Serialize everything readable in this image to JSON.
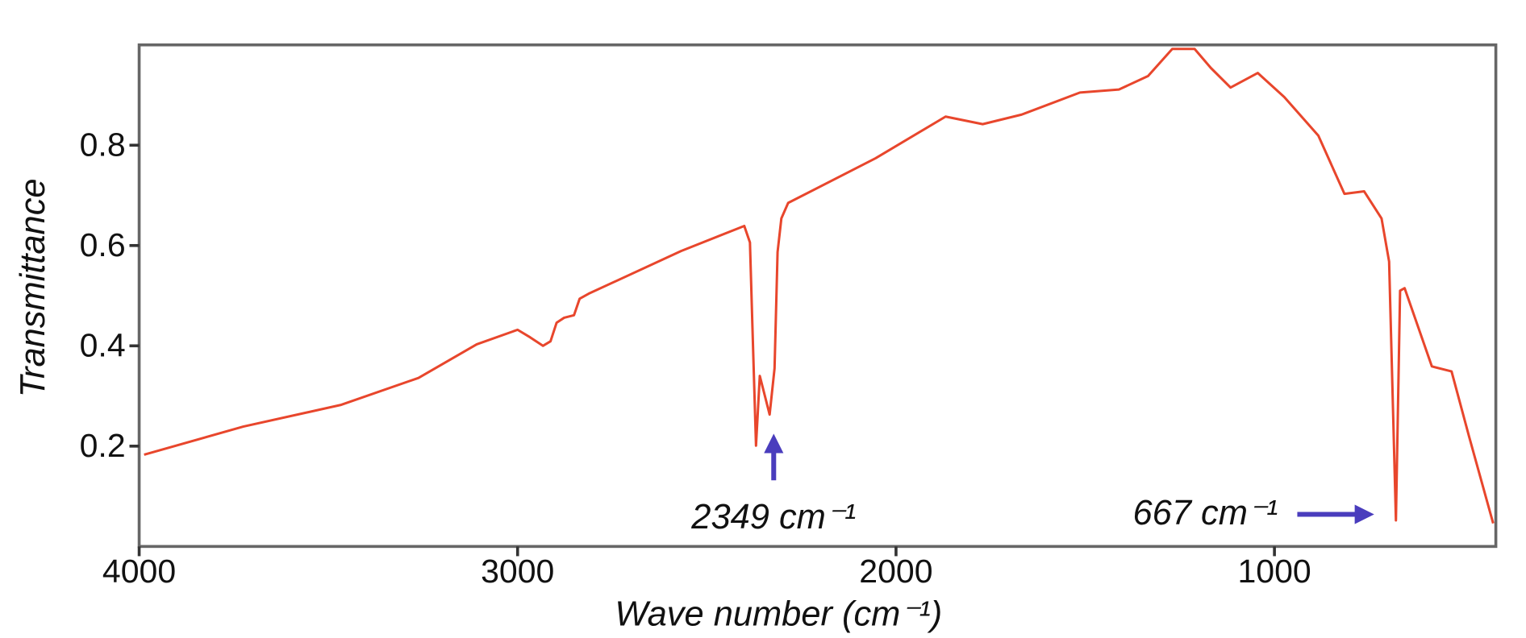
{
  "chart_data": {
    "type": "line",
    "x_label": "Wave number (cm⁻¹)",
    "y_label": "Transmittance",
    "annotations": [
      "2349 cm⁻¹",
      "667 cm⁻¹"
    ],
    "xlim": [
      4000,
      415
    ],
    "ylim": [
      0,
      1
    ],
    "xticks": [
      4000,
      3000,
      2000,
      1000
    ],
    "yticks": [
      0.2,
      0.4,
      0.6,
      0.8
    ],
    "grid": false,
    "x": [
      3987,
      3725,
      3468,
      3262,
      3108,
      3000,
      2967,
      2933,
      2913,
      2897,
      2877,
      2851,
      2836,
      2812,
      2568,
      2401,
      2386,
      2380,
      2370,
      2360,
      2334,
      2321,
      2313,
      2303,
      2285,
      2054,
      1869,
      1771,
      1668,
      1514,
      1411,
      1334,
      1270,
      1211,
      1168,
      1116,
      1044,
      974,
      884,
      815,
      763,
      717,
      697,
      679,
      668,
      656,
      584,
      532,
      486,
      422
    ],
    "series": [
      {
        "name": "Transmittance",
        "color": "#e8462c",
        "values": [
          0.183,
          0.239,
          0.282,
          0.336,
          0.403,
          0.432,
          0.417,
          0.4,
          0.409,
          0.446,
          0.456,
          0.461,
          0.494,
          0.504,
          0.589,
          0.639,
          0.606,
          0.452,
          0.201,
          0.34,
          0.263,
          0.355,
          0.587,
          0.654,
          0.685,
          0.774,
          0.857,
          0.842,
          0.861,
          0.905,
          0.911,
          0.938,
          0.992,
          0.992,
          0.954,
          0.915,
          0.944,
          0.896,
          0.819,
          0.703,
          0.708,
          0.654,
          0.568,
          0.052,
          0.51,
          0.515,
          0.359,
          0.349,
          0.22,
          0.046
        ]
      }
    ]
  }
}
